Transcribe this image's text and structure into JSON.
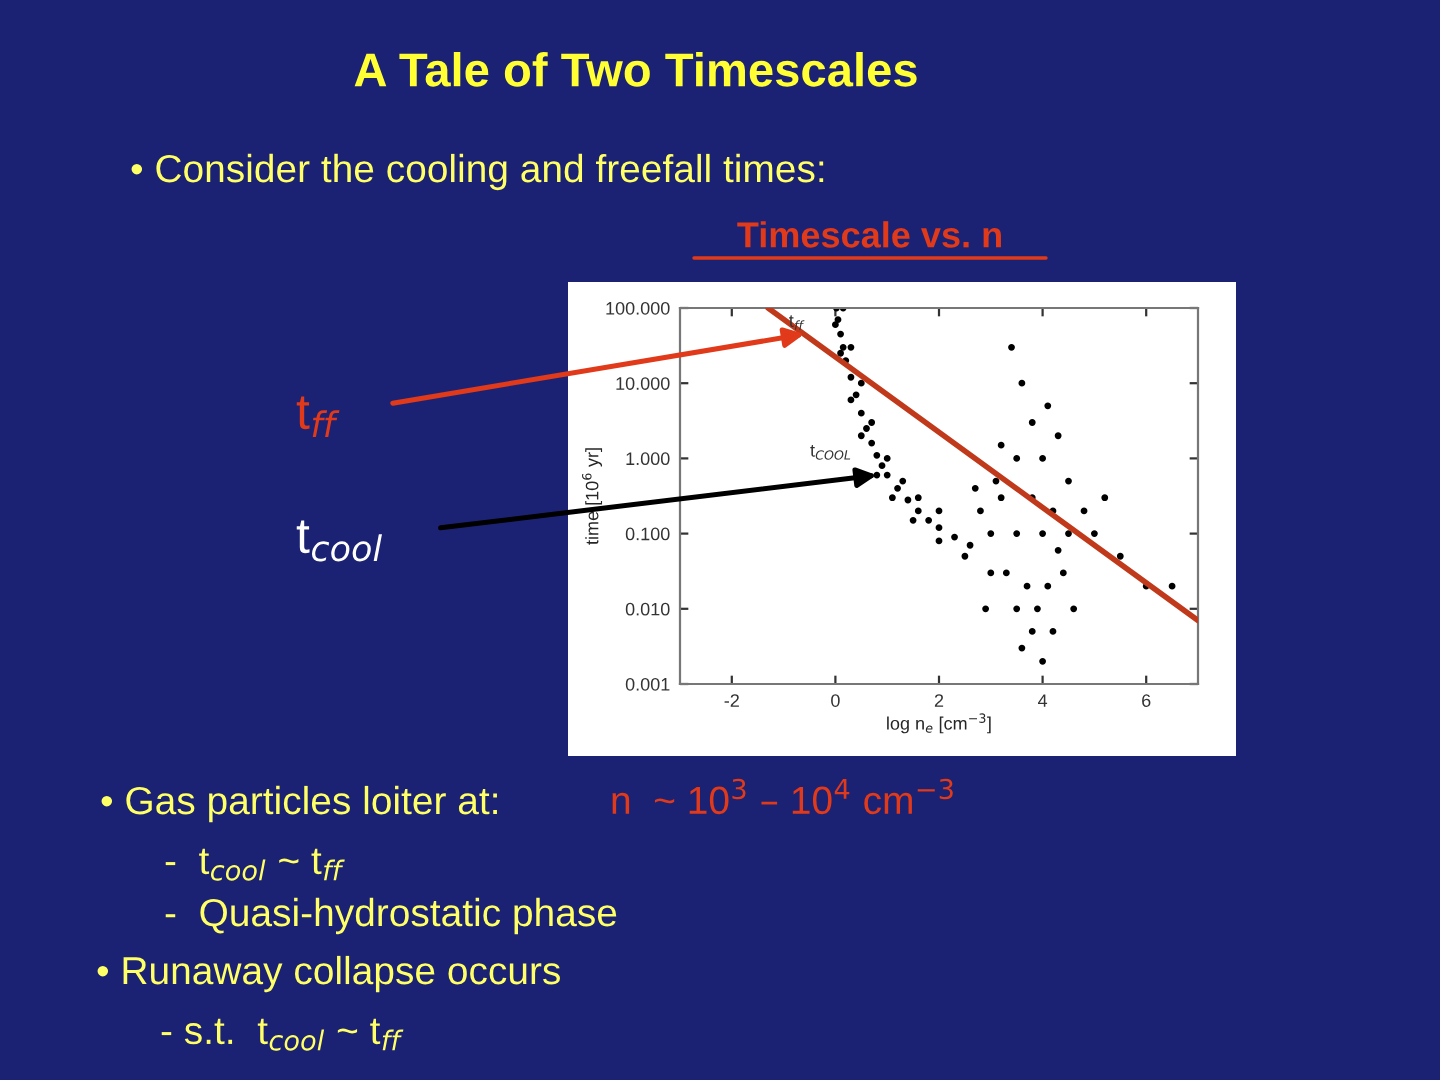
{
  "chart_data": {
    "type": "scatter",
    "title": "A Tale of Two Timescales",
    "subtitle": "Timescale vs. n",
    "xlabel": "log n$_{e}$ [cm$^{−3}$]",
    "ylabel": "time [10$^{6}$ yr]",
    "log": "y",
    "xlim": [
      -3,
      7
    ],
    "ylim": [
      0.001,
      100
    ],
    "xticks": [
      -2,
      0,
      2,
      4,
      6
    ],
    "yticks": [
      {
        "value": 0.001,
        "label": "0.001"
      },
      {
        "value": 0.01,
        "label": "0.010"
      },
      {
        "value": 0.1,
        "label": "0.100"
      },
      {
        "value": 1,
        "label": "1.000"
      },
      {
        "value": 10,
        "label": "10.000"
      },
      {
        "value": 100,
        "label": "100.000"
      }
    ],
    "grid": false,
    "legend": false,
    "series": [
      {
        "color": "#000000",
        "marker": "circle",
        "x": [
          0.02,
          0.05,
          0.1,
          0.15,
          0.2,
          0.3,
          0.4,
          0.5,
          0.6,
          0.7,
          0.8,
          0.9,
          1.0,
          1.2,
          1.4,
          1.6,
          1.8,
          2.0,
          2.3,
          2.6,
          0.15,
          0.3,
          0.5,
          0.7,
          1.0,
          1.3,
          1.6,
          2.0,
          0.0,
          0.1,
          0.3,
          0.5,
          0.8,
          1.1,
          1.5,
          2.0,
          3,
          3.5,
          4,
          3.2,
          3.8,
          4.2,
          3.5,
          4,
          3.8,
          3.6,
          3.4,
          3.3,
          3.7,
          4.1,
          3.9,
          3.5,
          3.8,
          4.2,
          3.0,
          2.8,
          2.5,
          4.5,
          4.5,
          4.4,
          5,
          5.5,
          6,
          6.5,
          4.8,
          5.2,
          3.2,
          4.3,
          4.1,
          2.7,
          2.9,
          4.6,
          3.6,
          4.0,
          3.1,
          4.3
        ],
        "values": [
          100,
          70,
          45,
          30,
          20,
          12,
          7,
          4,
          2.5,
          1.6,
          1.1,
          0.8,
          0.6,
          0.4,
          0.28,
          0.2,
          0.15,
          0.12,
          0.09,
          0.07,
          100,
          30,
          10,
          3,
          1,
          0.5,
          0.3,
          0.2,
          60,
          25,
          6,
          2,
          0.6,
          0.3,
          0.15,
          0.08,
          0.1,
          0.1,
          0.1,
          0.3,
          0.3,
          0.2,
          1,
          1,
          3,
          10,
          30,
          0.03,
          0.02,
          0.02,
          0.01,
          0.01,
          0.005,
          0.005,
          0.03,
          0.2,
          0.05,
          0.1,
          0.5,
          0.03,
          0.1,
          0.05,
          0.02,
          0.02,
          0.2,
          0.3,
          1.5,
          2,
          5,
          0.4,
          0.01,
          0.01,
          0.003,
          0.002,
          0.5,
          0.06
        ]
      },
      {
        "type": "line",
        "color": "#c0391b",
        "x": [
          -1.3,
          7
        ],
        "values": [
          100,
          0.007
        ]
      }
    ],
    "annotations": [
      "• Consider the cooling and freefall times:",
      {
        "text": "t$_{ff}$",
        "x": -0.6,
        "y": 45
      },
      {
        "text": "t$_{cool}$",
        "x": 0.8,
        "y": 0.6
      },
      {
        "text": "t$_{ff}$",
        "x": -0.9,
        "y": 50
      },
      "t$_{COOL}$",
      "• Gas particles loiter at:",
      "n  ~ 10$^{3}$ – 10$^{4}$ cm$^{−3}$",
      "-  t$_{cool}$ ~ t$_{ff}$",
      "-  Quasi-hydrostatic phase",
      "• Runaway collapse occurs",
      "- s.t.  t$_{cool}$ ~ t$_{ff}$"
    ]
  }
}
